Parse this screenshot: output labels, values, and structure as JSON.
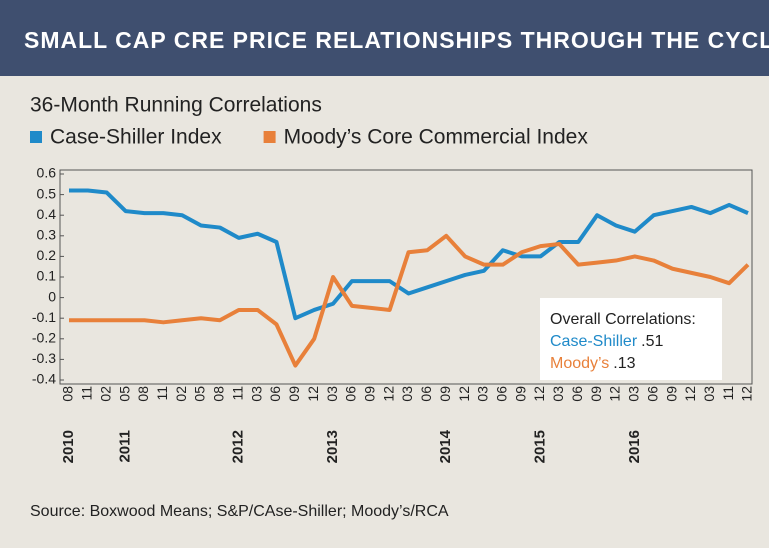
{
  "chart_data": {
    "type": "line",
    "title": "SMALL CAP CRE PRICE RELATIONSHIPS THROUGH THE CYCLE",
    "subtitle": "36-Month Running Correlations",
    "categories": [
      "08",
      "11",
      "02",
      "05",
      "08",
      "11",
      "02",
      "05",
      "08",
      "11",
      "03",
      "06",
      "09",
      "12",
      "03",
      "06",
      "09",
      "12",
      "03",
      "06",
      "09",
      "12",
      "03",
      "06",
      "09",
      "12",
      "03",
      "06",
      "09",
      "12",
      "03",
      "06",
      "09",
      "12",
      "03",
      "11",
      "12"
    ],
    "year_labels": [
      {
        "label": "2010",
        "index": 0
      },
      {
        "label": "2011",
        "index": 3
      },
      {
        "label": "2012",
        "index": 9
      },
      {
        "label": "2013",
        "index": 14
      },
      {
        "label": "2014",
        "index": 20
      },
      {
        "label": "2015",
        "index": 25
      },
      {
        "label": "2016",
        "index": 30
      }
    ],
    "series": [
      {
        "name": "Case-Shiller Index",
        "color": "#1f8ac9",
        "values": [
          0.52,
          0.52,
          0.51,
          0.42,
          0.41,
          0.41,
          0.4,
          0.35,
          0.34,
          0.29,
          0.31,
          0.27,
          -0.1,
          -0.06,
          -0.03,
          0.08,
          0.08,
          0.08,
          0.02,
          0.05,
          0.08,
          0.11,
          0.13,
          0.23,
          0.2,
          0.2,
          0.27,
          0.27,
          0.4,
          0.35,
          0.32,
          0.4,
          0.42,
          0.44,
          0.41,
          0.45,
          0.41
        ]
      },
      {
        "name": "Moody’s Core Commercial Index",
        "color": "#e8803a",
        "values": [
          -0.11,
          -0.11,
          -0.11,
          -0.11,
          -0.11,
          -0.12,
          -0.11,
          -0.1,
          -0.11,
          -0.06,
          -0.06,
          -0.13,
          -0.33,
          -0.2,
          0.1,
          -0.04,
          -0.05,
          -0.06,
          0.22,
          0.23,
          0.3,
          0.2,
          0.16,
          0.16,
          0.22,
          0.25,
          0.26,
          0.16,
          0.17,
          0.18,
          0.2,
          0.18,
          0.14,
          0.12,
          0.1,
          0.07,
          0.16
        ]
      }
    ],
    "ylim": [
      -0.4,
      0.6
    ],
    "yticks": [
      0.6,
      0.5,
      0.4,
      0.3,
      0.2,
      0.1,
      0,
      -0.1,
      -0.2,
      -0.3,
      -0.4
    ],
    "annotation": {
      "title": "Overall Correlations:",
      "items": [
        {
          "name": "Case-Shiller",
          "value": ".51"
        },
        {
          "name": "Moody’s",
          "value": ".13"
        }
      ]
    },
    "source": "Source: Boxwood Means; S&P/CAse-Shiller; Moody’s/RCA"
  }
}
